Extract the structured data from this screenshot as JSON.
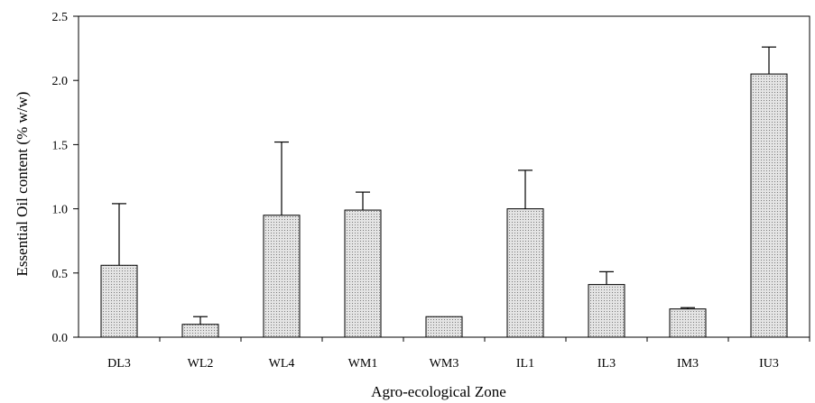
{
  "chart_data": {
    "type": "bar",
    "title": "",
    "xlabel": "Agro-ecological Zone",
    "ylabel": "Essential Oil  content (% w/w)",
    "categories": [
      "DL3",
      "WL2",
      "WL4",
      "WM1",
      "WM3",
      "IL1",
      "IL3",
      "IM3",
      "IU3"
    ],
    "series": [
      {
        "values": [
          0.56,
          0.1,
          0.95,
          0.99,
          0.16,
          1.0,
          0.41,
          0.22,
          2.05
        ],
        "error_plus": [
          0.48,
          0.06,
          0.57,
          0.14,
          0.0,
          0.3,
          0.1,
          0.01,
          0.21
        ]
      }
    ],
    "ylim": [
      0,
      2.5
    ],
    "yticks": [
      "0.0",
      "0.5",
      "1.0",
      "1.5",
      "2.0",
      "2.5"
    ],
    "grid": false,
    "bar_fill": "#d9d9d9",
    "bar_pattern": "dotted",
    "legend": "none"
  }
}
